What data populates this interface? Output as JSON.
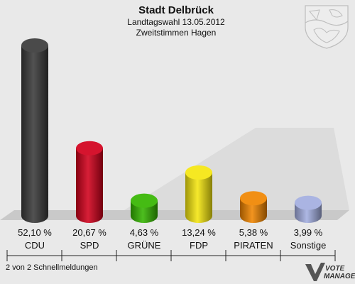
{
  "header": {
    "title": "Stadt Delbrück",
    "subtitle1": "Landtagswahl 13.05.2012",
    "subtitle2": "Zweitstimmen Hagen"
  },
  "footer": {
    "status": "2 von 2 Schnellmeldungen",
    "brand_line1": "VOTE",
    "brand_line2": "MANAGER"
  },
  "colors": {
    "background": "#e9e9e9",
    "floor": "#c9c9c9"
  },
  "icons": {
    "crest": "nrw-coat-of-arms-icon",
    "brand": "vote-manager-logo-icon"
  },
  "chart_data": {
    "type": "bar",
    "title": "Stadt Delbrück",
    "categories": [
      "CDU",
      "SPD",
      "GRÜNE",
      "FDP",
      "PIRATEN",
      "Sonstige"
    ],
    "values": [
      52.1,
      20.67,
      4.63,
      13.24,
      5.38,
      3.99
    ],
    "value_labels": [
      "52,10 %",
      "20,67 %",
      "4,63 %",
      "13,24 %",
      "5,38 %",
      "3,99 %"
    ],
    "colors": [
      "#3a3a3a",
      "#d1001c",
      "#35b500",
      "#f5e60f",
      "#f08500",
      "#a3aee0"
    ],
    "grid": false,
    "legend": "none"
  }
}
